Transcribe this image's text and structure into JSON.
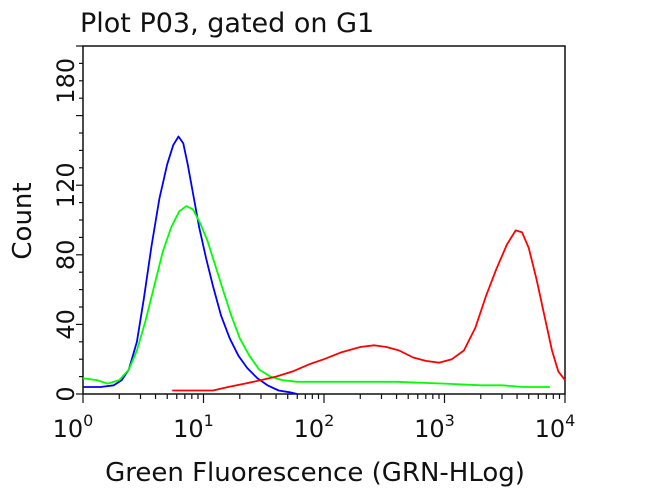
{
  "chart_data": {
    "type": "line",
    "title": "Plot P03, gated on G1",
    "xlabel": "Green Fluorescence (GRN-HLog)",
    "ylabel": "Count",
    "x_scale": "log",
    "xlim": [
      1,
      10000
    ],
    "ylim": [
      0,
      200
    ],
    "x_ticks": [
      {
        "value": 1,
        "base": "10",
        "exp": "0"
      },
      {
        "value": 10,
        "base": "10",
        "exp": "1"
      },
      {
        "value": 100,
        "base": "10",
        "exp": "2"
      },
      {
        "value": 1000,
        "base": "10",
        "exp": "3"
      },
      {
        "value": 10000,
        "base": "10",
        "exp": "4"
      }
    ],
    "y_ticks": [
      {
        "value": 0,
        "label": "0"
      },
      {
        "value": 40,
        "label": "40"
      },
      {
        "value": 80,
        "label": "80"
      },
      {
        "value": 120,
        "label": "120"
      },
      {
        "value": 180,
        "label": "180"
      }
    ],
    "grid": false,
    "series": [
      {
        "color": "#0000ff",
        "points": [
          [
            1.0,
            4
          ],
          [
            1.4,
            4
          ],
          [
            1.8,
            5
          ],
          [
            2.1,
            8
          ],
          [
            2.4,
            14
          ],
          [
            2.8,
            30
          ],
          [
            3.2,
            55
          ],
          [
            3.7,
            85
          ],
          [
            4.3,
            112
          ],
          [
            5.0,
            132
          ],
          [
            5.6,
            143
          ],
          [
            6.2,
            148
          ],
          [
            6.8,
            144
          ],
          [
            7.4,
            132
          ],
          [
            8.2,
            115
          ],
          [
            9.2,
            96
          ],
          [
            10.5,
            78
          ],
          [
            12,
            62
          ],
          [
            14,
            45
          ],
          [
            16.5,
            32
          ],
          [
            19.5,
            22
          ],
          [
            23,
            15
          ],
          [
            28,
            9
          ],
          [
            34,
            5
          ],
          [
            42,
            2
          ],
          [
            52,
            1
          ],
          [
            60,
            0
          ]
        ]
      },
      {
        "color": "#00ff00",
        "points": [
          [
            1.0,
            9
          ],
          [
            1.3,
            8
          ],
          [
            1.6,
            6
          ],
          [
            2.0,
            8
          ],
          [
            2.4,
            14
          ],
          [
            2.8,
            25
          ],
          [
            3.3,
            42
          ],
          [
            3.9,
            62
          ],
          [
            4.6,
            82
          ],
          [
            5.4,
            96
          ],
          [
            6.3,
            105
          ],
          [
            7.2,
            108
          ],
          [
            8.2,
            106
          ],
          [
            9.4,
            98
          ],
          [
            10.8,
            88
          ],
          [
            12.5,
            74
          ],
          [
            14.5,
            60
          ],
          [
            17,
            45
          ],
          [
            20,
            32
          ],
          [
            24,
            22
          ],
          [
            29,
            14
          ],
          [
            36,
            10
          ],
          [
            45,
            8
          ],
          [
            60,
            7
          ],
          [
            100,
            7
          ],
          [
            200,
            7
          ],
          [
            400,
            7
          ],
          [
            1000,
            6
          ],
          [
            2000,
            5
          ],
          [
            3000,
            5
          ],
          [
            4500,
            4
          ],
          [
            6000,
            4
          ],
          [
            7500,
            4
          ]
        ]
      },
      {
        "color": "#ff0000",
        "points": [
          [
            5.5,
            2
          ],
          [
            8,
            2
          ],
          [
            12,
            2
          ],
          [
            16,
            4
          ],
          [
            22,
            6
          ],
          [
            30,
            8
          ],
          [
            40,
            10
          ],
          [
            55,
            13
          ],
          [
            75,
            17
          ],
          [
            100,
            20
          ],
          [
            140,
            24
          ],
          [
            200,
            27
          ],
          [
            260,
            28
          ],
          [
            330,
            27
          ],
          [
            420,
            25
          ],
          [
            550,
            21
          ],
          [
            700,
            19
          ],
          [
            900,
            18
          ],
          [
            1150,
            20
          ],
          [
            1450,
            25
          ],
          [
            1800,
            38
          ],
          [
            2200,
            56
          ],
          [
            2700,
            72
          ],
          [
            3300,
            86
          ],
          [
            3900,
            94
          ],
          [
            4400,
            93
          ],
          [
            5000,
            84
          ],
          [
            5800,
            66
          ],
          [
            6800,
            44
          ],
          [
            7800,
            25
          ],
          [
            8800,
            13
          ],
          [
            10000,
            8
          ]
        ]
      }
    ]
  }
}
